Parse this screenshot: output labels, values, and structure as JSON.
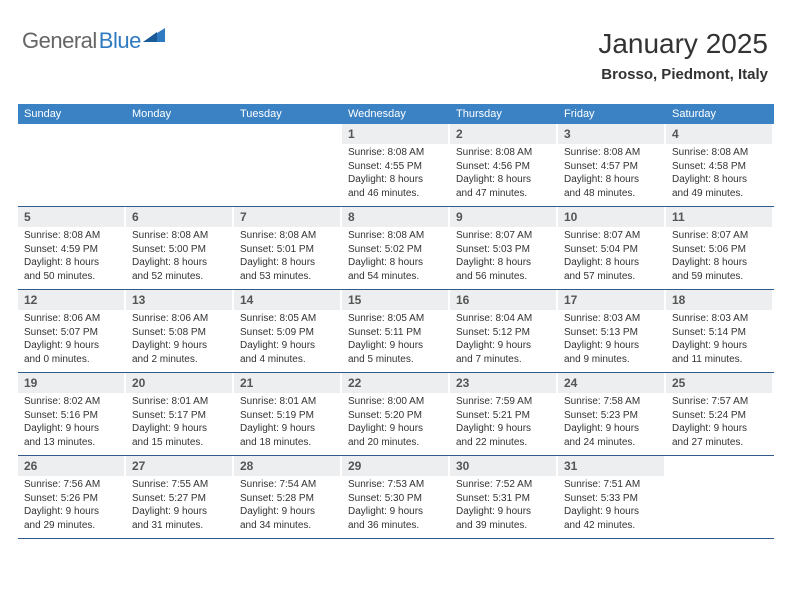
{
  "logo": {
    "textA": "General",
    "textB": "Blue"
  },
  "title": "January 2025",
  "location": "Brosso, Piedmont, Italy",
  "colors": {
    "headerBg": "#3b82c4",
    "headerText": "#ffffff",
    "bandBg": "#eceeef",
    "weekDivider": "#2f5a8a",
    "bodyText": "#333333",
    "logoBlue": "#2f7ac0",
    "logoGray": "#666666"
  },
  "dayNames": [
    "Sunday",
    "Monday",
    "Tuesday",
    "Wednesday",
    "Thursday",
    "Friday",
    "Saturday"
  ],
  "weeks": [
    [
      null,
      null,
      null,
      {
        "n": "1",
        "sr": "8:08 AM",
        "ss": "4:55 PM",
        "dl": "8 hours and 46 minutes."
      },
      {
        "n": "2",
        "sr": "8:08 AM",
        "ss": "4:56 PM",
        "dl": "8 hours and 47 minutes."
      },
      {
        "n": "3",
        "sr": "8:08 AM",
        "ss": "4:57 PM",
        "dl": "8 hours and 48 minutes."
      },
      {
        "n": "4",
        "sr": "8:08 AM",
        "ss": "4:58 PM",
        "dl": "8 hours and 49 minutes."
      }
    ],
    [
      {
        "n": "5",
        "sr": "8:08 AM",
        "ss": "4:59 PM",
        "dl": "8 hours and 50 minutes."
      },
      {
        "n": "6",
        "sr": "8:08 AM",
        "ss": "5:00 PM",
        "dl": "8 hours and 52 minutes."
      },
      {
        "n": "7",
        "sr": "8:08 AM",
        "ss": "5:01 PM",
        "dl": "8 hours and 53 minutes."
      },
      {
        "n": "8",
        "sr": "8:08 AM",
        "ss": "5:02 PM",
        "dl": "8 hours and 54 minutes."
      },
      {
        "n": "9",
        "sr": "8:07 AM",
        "ss": "5:03 PM",
        "dl": "8 hours and 56 minutes."
      },
      {
        "n": "10",
        "sr": "8:07 AM",
        "ss": "5:04 PM",
        "dl": "8 hours and 57 minutes."
      },
      {
        "n": "11",
        "sr": "8:07 AM",
        "ss": "5:06 PM",
        "dl": "8 hours and 59 minutes."
      }
    ],
    [
      {
        "n": "12",
        "sr": "8:06 AM",
        "ss": "5:07 PM",
        "dl": "9 hours and 0 minutes."
      },
      {
        "n": "13",
        "sr": "8:06 AM",
        "ss": "5:08 PM",
        "dl": "9 hours and 2 minutes."
      },
      {
        "n": "14",
        "sr": "8:05 AM",
        "ss": "5:09 PM",
        "dl": "9 hours and 4 minutes."
      },
      {
        "n": "15",
        "sr": "8:05 AM",
        "ss": "5:11 PM",
        "dl": "9 hours and 5 minutes."
      },
      {
        "n": "16",
        "sr": "8:04 AM",
        "ss": "5:12 PM",
        "dl": "9 hours and 7 minutes."
      },
      {
        "n": "17",
        "sr": "8:03 AM",
        "ss": "5:13 PM",
        "dl": "9 hours and 9 minutes."
      },
      {
        "n": "18",
        "sr": "8:03 AM",
        "ss": "5:14 PM",
        "dl": "9 hours and 11 minutes."
      }
    ],
    [
      {
        "n": "19",
        "sr": "8:02 AM",
        "ss": "5:16 PM",
        "dl": "9 hours and 13 minutes."
      },
      {
        "n": "20",
        "sr": "8:01 AM",
        "ss": "5:17 PM",
        "dl": "9 hours and 15 minutes."
      },
      {
        "n": "21",
        "sr": "8:01 AM",
        "ss": "5:19 PM",
        "dl": "9 hours and 18 minutes."
      },
      {
        "n": "22",
        "sr": "8:00 AM",
        "ss": "5:20 PM",
        "dl": "9 hours and 20 minutes."
      },
      {
        "n": "23",
        "sr": "7:59 AM",
        "ss": "5:21 PM",
        "dl": "9 hours and 22 minutes."
      },
      {
        "n": "24",
        "sr": "7:58 AM",
        "ss": "5:23 PM",
        "dl": "9 hours and 24 minutes."
      },
      {
        "n": "25",
        "sr": "7:57 AM",
        "ss": "5:24 PM",
        "dl": "9 hours and 27 minutes."
      }
    ],
    [
      {
        "n": "26",
        "sr": "7:56 AM",
        "ss": "5:26 PM",
        "dl": "9 hours and 29 minutes."
      },
      {
        "n": "27",
        "sr": "7:55 AM",
        "ss": "5:27 PM",
        "dl": "9 hours and 31 minutes."
      },
      {
        "n": "28",
        "sr": "7:54 AM",
        "ss": "5:28 PM",
        "dl": "9 hours and 34 minutes."
      },
      {
        "n": "29",
        "sr": "7:53 AM",
        "ss": "5:30 PM",
        "dl": "9 hours and 36 minutes."
      },
      {
        "n": "30",
        "sr": "7:52 AM",
        "ss": "5:31 PM",
        "dl": "9 hours and 39 minutes."
      },
      {
        "n": "31",
        "sr": "7:51 AM",
        "ss": "5:33 PM",
        "dl": "9 hours and 42 minutes."
      },
      null
    ]
  ],
  "labels": {
    "sunrise": "Sunrise:",
    "sunset": "Sunset:",
    "daylight": "Daylight:"
  }
}
